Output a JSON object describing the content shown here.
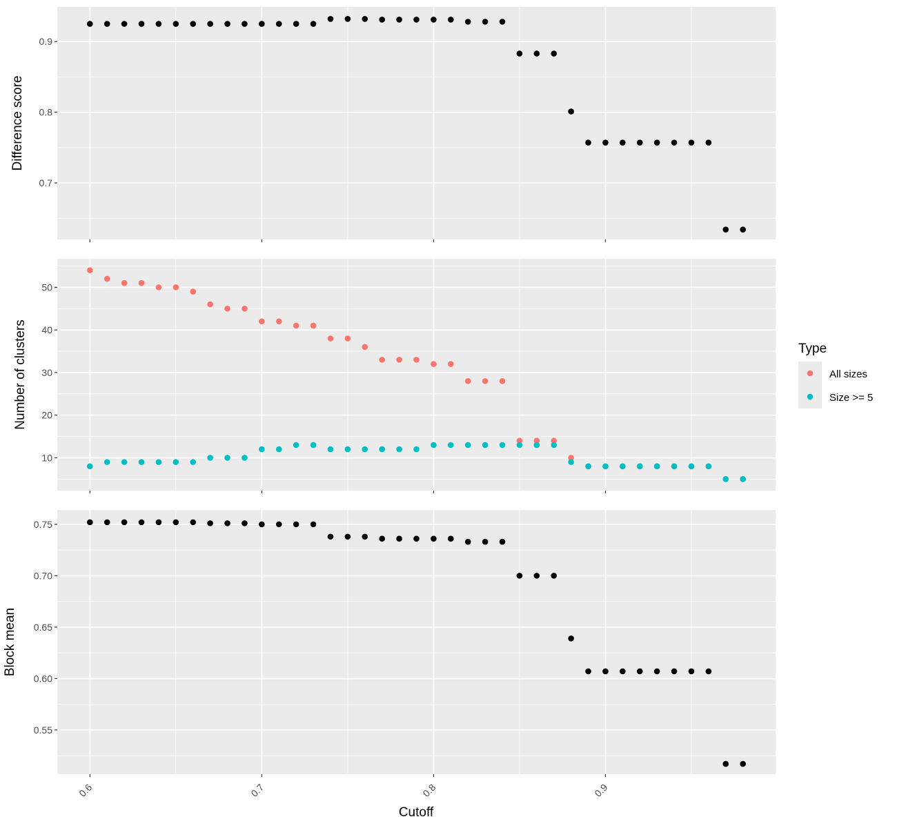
{
  "chart_data": {
    "type": "scatter",
    "xlabel": "Cutoff",
    "x_ticks": [
      0.6,
      0.7,
      0.8,
      0.9
    ],
    "x_tick_labels": [
      "0.6",
      "0.7",
      "0.8",
      "0.9"
    ],
    "xlim": [
      0.581,
      0.999
    ],
    "grid": true,
    "legend": {
      "title": "Type",
      "position": "right",
      "entries": [
        {
          "label": "All sizes",
          "color": "#F8766D"
        },
        {
          "label": "Size >= 5",
          "color": "#00BFC4"
        }
      ]
    },
    "panels": [
      {
        "ylabel": "Difference score",
        "ylim": [
          0.62,
          0.949
        ],
        "y_ticks": [
          0.7,
          0.8,
          0.9
        ],
        "y_tick_labels": [
          "0.7",
          "0.8",
          "0.9"
        ],
        "series": [
          {
            "color": "#000000",
            "x": [
              0.6,
              0.61,
              0.62,
              0.63,
              0.64,
              0.65,
              0.66,
              0.67,
              0.68,
              0.69,
              0.7,
              0.71,
              0.72,
              0.73,
              0.74,
              0.75,
              0.76,
              0.77,
              0.78,
              0.79,
              0.8,
              0.81,
              0.82,
              0.83,
              0.84,
              0.85,
              0.86,
              0.87,
              0.88,
              0.89,
              0.9,
              0.91,
              0.92,
              0.93,
              0.94,
              0.95,
              0.96,
              0.97,
              0.98
            ],
            "y": [
              0.925,
              0.925,
              0.925,
              0.925,
              0.925,
              0.925,
              0.925,
              0.925,
              0.925,
              0.925,
              0.925,
              0.925,
              0.925,
              0.925,
              0.932,
              0.932,
              0.932,
              0.931,
              0.931,
              0.931,
              0.931,
              0.931,
              0.928,
              0.928,
              0.928,
              0.883,
              0.883,
              0.883,
              0.801,
              0.757,
              0.757,
              0.757,
              0.757,
              0.757,
              0.757,
              0.757,
              0.757,
              0.634,
              0.634
            ]
          }
        ]
      },
      {
        "ylabel": "Number of clusters",
        "ylim": [
          2.3,
          56.7
        ],
        "y_ticks": [
          10,
          20,
          30,
          40,
          50
        ],
        "y_tick_labels": [
          "10",
          "20",
          "30",
          "40",
          "50"
        ],
        "series": [
          {
            "name": "All sizes",
            "color": "#F8766D",
            "x": [
              0.6,
              0.61,
              0.62,
              0.63,
              0.64,
              0.65,
              0.66,
              0.67,
              0.68,
              0.69,
              0.7,
              0.71,
              0.72,
              0.73,
              0.74,
              0.75,
              0.76,
              0.77,
              0.78,
              0.79,
              0.8,
              0.81,
              0.82,
              0.83,
              0.84,
              0.85,
              0.86,
              0.87,
              0.88,
              0.89,
              0.9,
              0.91,
              0.92,
              0.93,
              0.94,
              0.95,
              0.96,
              0.97,
              0.98
            ],
            "y": [
              54,
              52,
              51,
              51,
              50,
              50,
              49,
              46,
              45,
              45,
              42,
              42,
              41,
              41,
              38,
              38,
              36,
              33,
              33,
              33,
              32,
              32,
              28,
              28,
              28,
              14,
              14,
              14,
              10,
              8,
              8,
              8,
              8,
              8,
              8,
              8,
              8,
              5,
              5
            ]
          },
          {
            "name": "Size >= 5",
            "color": "#00BFC4",
            "x": [
              0.6,
              0.61,
              0.62,
              0.63,
              0.64,
              0.65,
              0.66,
              0.67,
              0.68,
              0.69,
              0.7,
              0.71,
              0.72,
              0.73,
              0.74,
              0.75,
              0.76,
              0.77,
              0.78,
              0.79,
              0.8,
              0.81,
              0.82,
              0.83,
              0.84,
              0.85,
              0.86,
              0.87,
              0.88,
              0.89,
              0.9,
              0.91,
              0.92,
              0.93,
              0.94,
              0.95,
              0.96,
              0.97,
              0.98
            ],
            "y": [
              8,
              9,
              9,
              9,
              9,
              9,
              9,
              10,
              10,
              10,
              12,
              12,
              13,
              13,
              12,
              12,
              12,
              12,
              12,
              12,
              13,
              13,
              13,
              13,
              13,
              13,
              13,
              13,
              9,
              8,
              8,
              8,
              8,
              8,
              8,
              8,
              8,
              5,
              5
            ]
          }
        ]
      },
      {
        "ylabel": "Block mean",
        "ylim": [
          0.507,
          0.764
        ],
        "y_ticks": [
          0.55,
          0.6,
          0.65,
          0.7,
          0.75
        ],
        "y_tick_labels": [
          "0.55",
          "0.60",
          "0.65",
          "0.70",
          "0.75"
        ],
        "series": [
          {
            "color": "#000000",
            "x": [
              0.6,
              0.61,
              0.62,
              0.63,
              0.64,
              0.65,
              0.66,
              0.67,
              0.68,
              0.69,
              0.7,
              0.71,
              0.72,
              0.73,
              0.74,
              0.75,
              0.76,
              0.77,
              0.78,
              0.79,
              0.8,
              0.81,
              0.82,
              0.83,
              0.84,
              0.85,
              0.86,
              0.87,
              0.88,
              0.89,
              0.9,
              0.91,
              0.92,
              0.93,
              0.94,
              0.95,
              0.96,
              0.97,
              0.98
            ],
            "y": [
              0.752,
              0.752,
              0.752,
              0.752,
              0.752,
              0.752,
              0.752,
              0.751,
              0.751,
              0.751,
              0.75,
              0.75,
              0.75,
              0.75,
              0.738,
              0.738,
              0.738,
              0.736,
              0.736,
              0.736,
              0.736,
              0.736,
              0.733,
              0.733,
              0.733,
              0.7,
              0.7,
              0.7,
              0.639,
              0.607,
              0.607,
              0.607,
              0.607,
              0.607,
              0.607,
              0.607,
              0.607,
              0.517,
              0.517
            ]
          }
        ]
      }
    ]
  }
}
